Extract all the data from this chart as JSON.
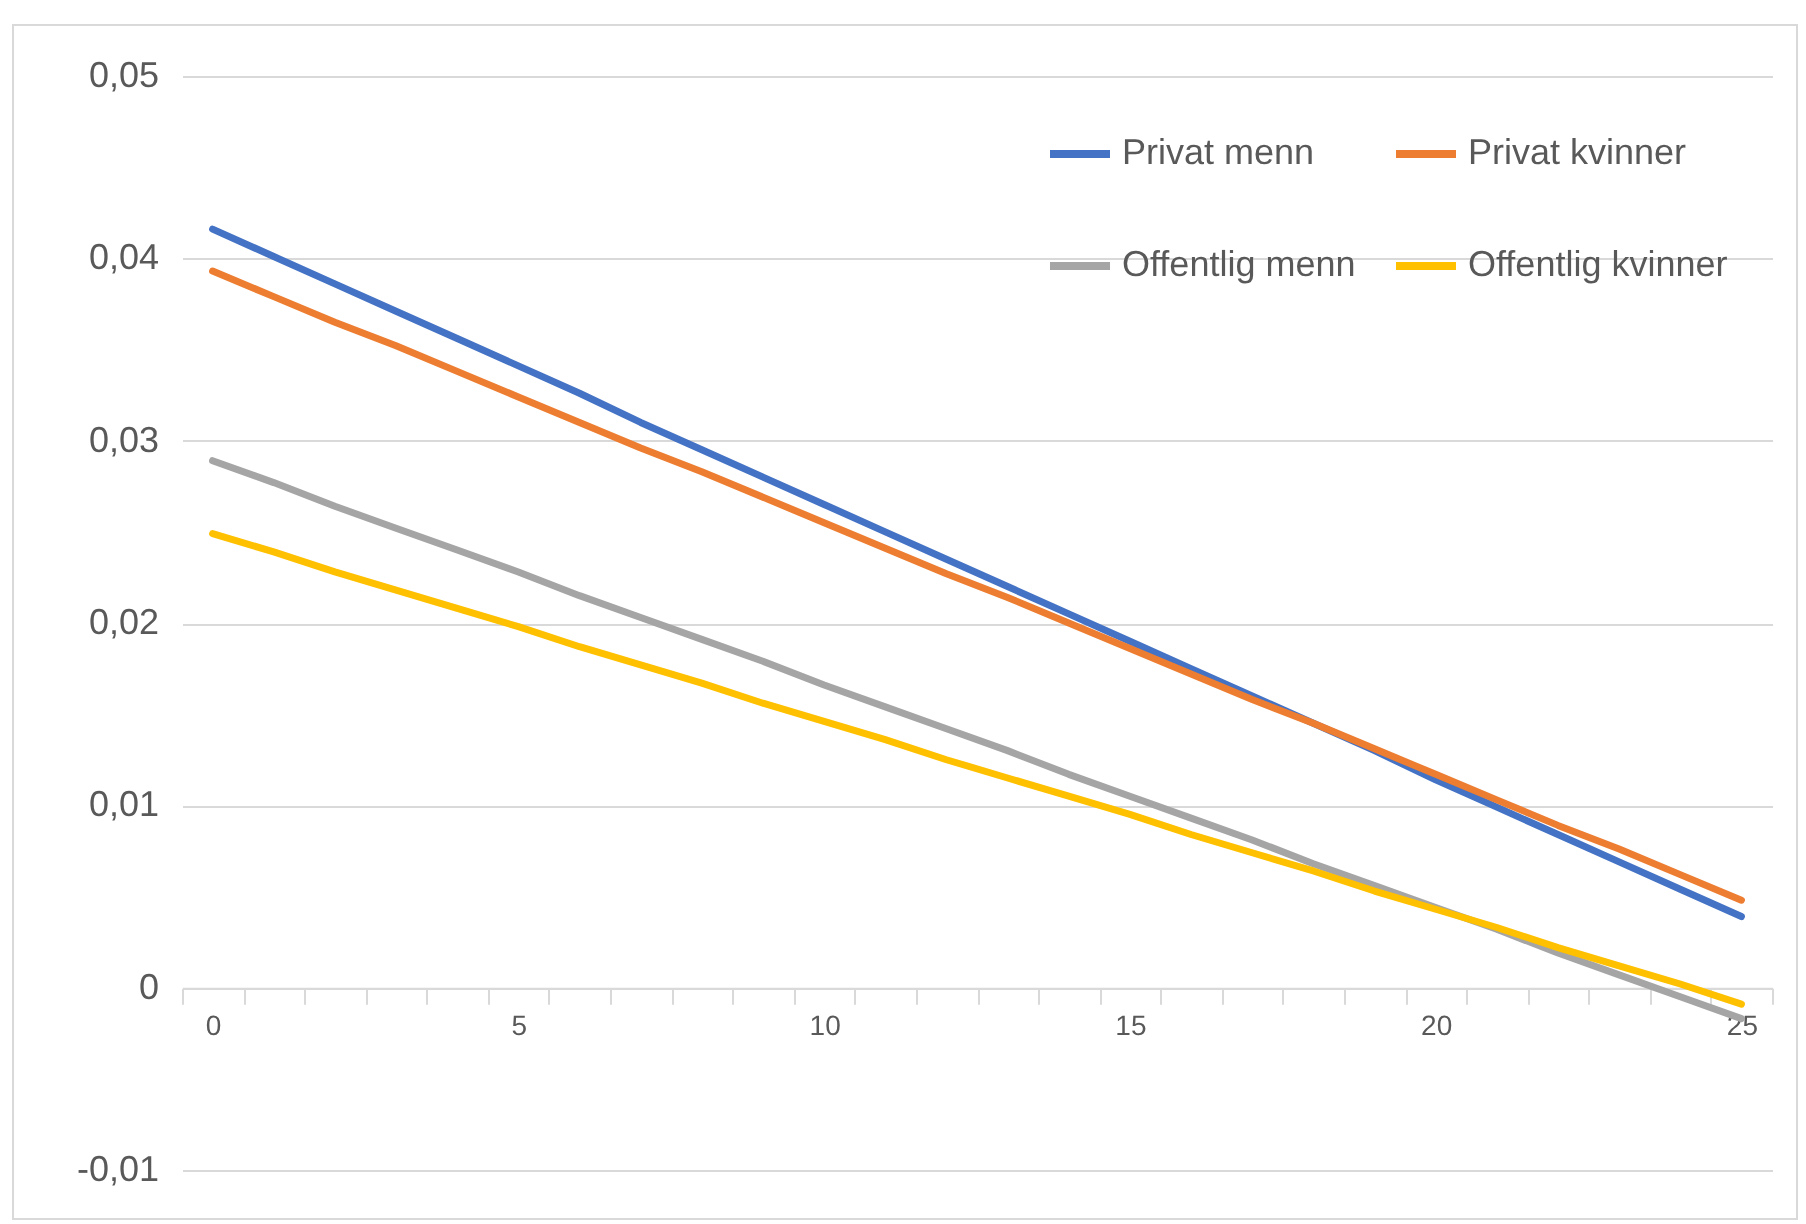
{
  "chart_data": {
    "type": "line",
    "categories": [
      "0",
      null,
      null,
      null,
      null,
      "5",
      null,
      null,
      null,
      null,
      "10",
      null,
      null,
      null,
      null,
      "15",
      null,
      null,
      null,
      null,
      "20",
      null,
      null,
      null,
      null,
      "25"
    ],
    "series": [
      {
        "name": "Privat menn",
        "color": "#4472c4",
        "values": [
          0.0416,
          0.0401,
          0.0386,
          0.0371,
          0.0356,
          0.0341,
          0.0326,
          0.031,
          0.0295,
          0.028,
          0.0265,
          0.025,
          0.0235,
          0.022,
          0.0205,
          0.019,
          0.0175,
          0.016,
          0.0145,
          0.013,
          0.0114,
          0.0099,
          0.0084,
          0.0069,
          0.0054,
          0.0039
        ]
      },
      {
        "name": "Privat kvinner",
        "color": "#ed7d31",
        "values": [
          0.0393,
          0.0379,
          0.0365,
          0.0352,
          0.0338,
          0.0324,
          0.031,
          0.0296,
          0.0283,
          0.0269,
          0.0255,
          0.0241,
          0.0227,
          0.0214,
          0.02,
          0.0186,
          0.0172,
          0.0158,
          0.0145,
          0.0131,
          0.0117,
          0.0103,
          0.0089,
          0.0076,
          0.0062,
          0.0048
        ]
      },
      {
        "name": "Offentlig menn",
        "color": "#a5a5a5",
        "values": [
          0.0289,
          0.0277,
          0.0264,
          0.0252,
          0.024,
          0.0228,
          0.0215,
          0.0203,
          0.0191,
          0.0179,
          0.0166,
          0.0154,
          0.0142,
          0.013,
          0.0117,
          0.0105,
          0.0093,
          0.0081,
          0.0068,
          0.0056,
          0.0044,
          0.0032,
          0.0019,
          0.0007,
          -0.0005,
          -0.0017
        ]
      },
      {
        "name": "Offentlig kvinner",
        "color": "#ffc000",
        "values": [
          0.0249,
          0.0239,
          0.0228,
          0.0218,
          0.0208,
          0.0198,
          0.0187,
          0.0177,
          0.0167,
          0.0156,
          0.0146,
          0.0136,
          0.0125,
          0.0115,
          0.0105,
          0.0095,
          0.0084,
          0.0074,
          0.0064,
          0.0053,
          0.0043,
          0.0033,
          0.0022,
          0.0012,
          0.0002,
          -0.0009
        ]
      }
    ],
    "ylim": [
      -0.01,
      0.05
    ],
    "yticks": [
      {
        "value": -0.01,
        "label": "-0,01"
      },
      0,
      {
        "value": 0.01,
        "label": "0,01"
      },
      {
        "value": 0.02,
        "label": "0,02"
      },
      {
        "value": 0.03,
        "label": "0,03"
      },
      {
        "value": 0.04,
        "label": "0,04"
      },
      {
        "value": 0.05,
        "label": "0,05"
      }
    ],
    "grid": "y",
    "legend": "top right",
    "line_style": "solid"
  }
}
